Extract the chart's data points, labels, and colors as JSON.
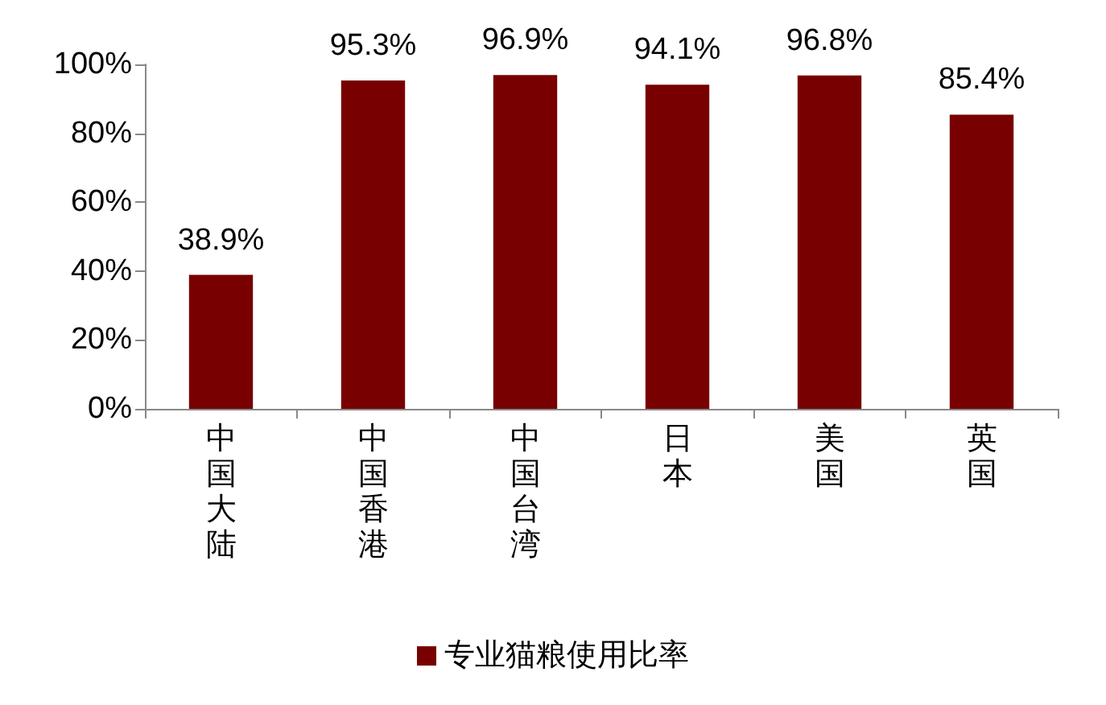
{
  "chart_data": {
    "type": "bar",
    "categories": [
      "中国大陆",
      "中国香港",
      "中国台湾",
      "日本",
      "美国",
      "英国"
    ],
    "series": [
      {
        "name": "专业猫粮使用比率",
        "color": "#780000",
        "values": [
          38.9,
          95.3,
          96.9,
          94.1,
          96.8,
          85.4
        ],
        "value_labels": [
          "38.9%",
          "95.3%",
          "96.9%",
          "94.1%",
          "96.8%",
          "85.4%"
        ]
      }
    ],
    "ylim": [
      0,
      100
    ],
    "yticks": [
      {
        "value": 0,
        "label": "0%"
      },
      {
        "value": 20,
        "label": "20%"
      },
      {
        "value": 40,
        "label": "40%"
      },
      {
        "value": 60,
        "label": "60%"
      },
      {
        "value": 80,
        "label": "80%"
      },
      {
        "value": 100,
        "label": "100%"
      }
    ],
    "grid": false,
    "legend": "bottom"
  }
}
